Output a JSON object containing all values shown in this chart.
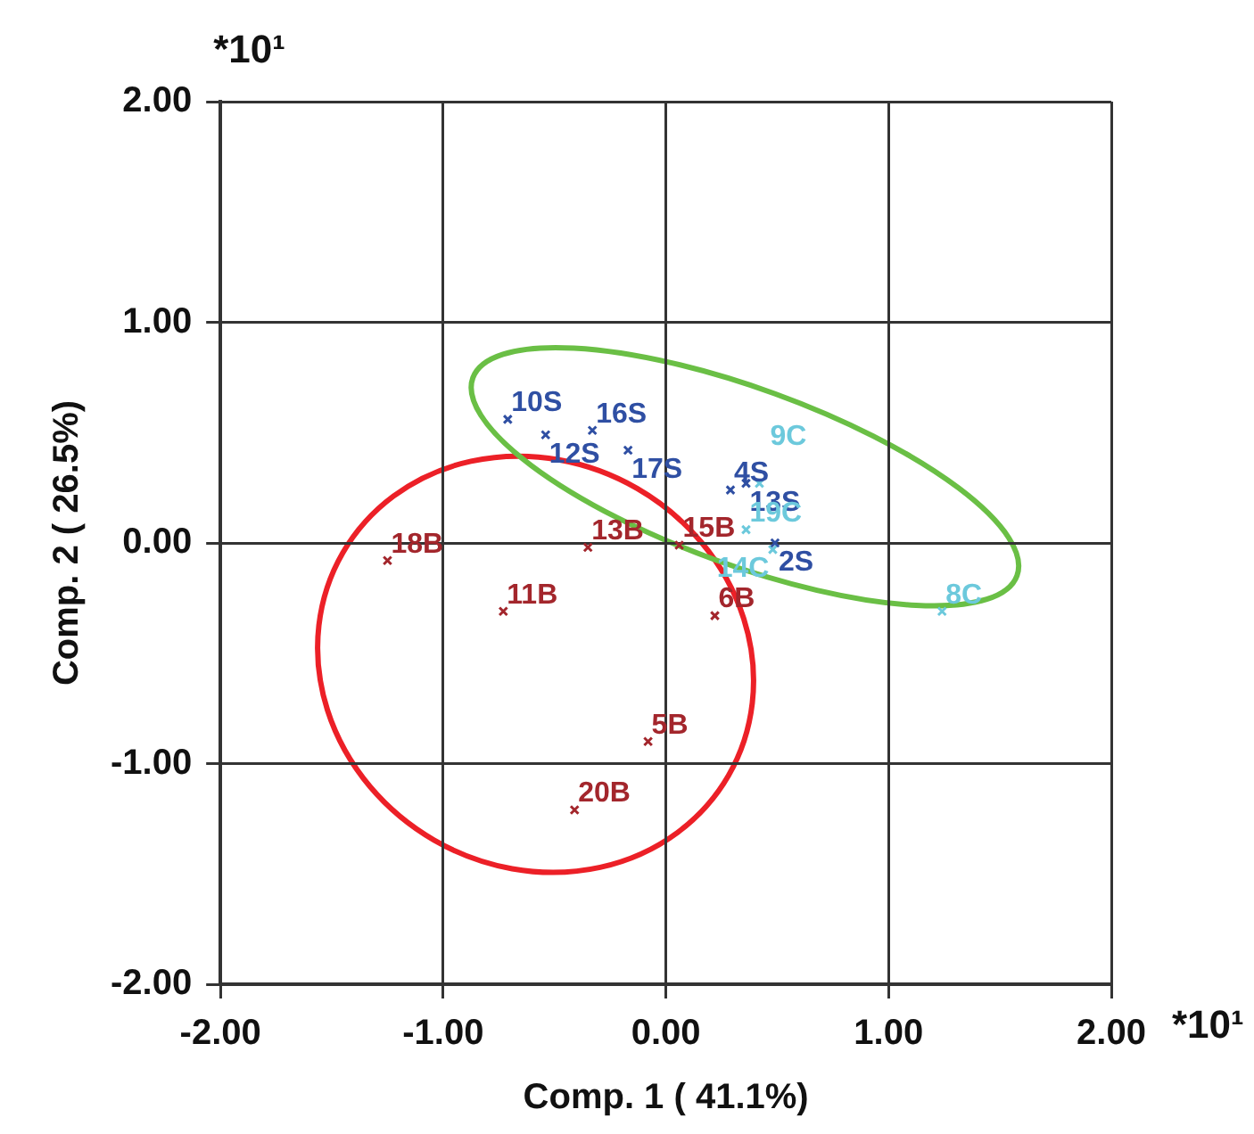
{
  "chart_data": {
    "type": "scatter",
    "xlabel": "Comp. 1 ( 41.1%)",
    "ylabel": "Comp. 2 ( 26.5%)",
    "annotations": [
      "*10¹",
      "*10¹"
    ],
    "xlim": [
      -2,
      2
    ],
    "ylim": [
      -2,
      2
    ],
    "xticks": [
      {
        "value": -2,
        "label": "-2.00"
      },
      {
        "value": -1,
        "label": "-1.00"
      },
      {
        "value": 0,
        "label": "0.00"
      },
      {
        "value": 1,
        "label": "1.00"
      },
      {
        "value": 2,
        "label": "2.00"
      }
    ],
    "yticks": [
      {
        "value": -2,
        "label": "-2.00"
      },
      {
        "value": -1,
        "label": "-1.00"
      },
      {
        "value": 0,
        "label": "0.00"
      },
      {
        "value": 1,
        "label": "1.00"
      },
      {
        "value": 2,
        "label": "2.00"
      }
    ],
    "grid": true,
    "legend": false,
    "marker": "cross",
    "series": [
      {
        "name": "18B",
        "color": "#a3262c",
        "x": [
          -1.25
        ],
        "values": [
          -0.08
        ]
      },
      {
        "name": "11B",
        "color": "#a3262c",
        "x": [
          -0.73
        ],
        "values": [
          -0.31
        ]
      },
      {
        "name": "13B",
        "color": "#a3262c",
        "x": [
          -0.35
        ],
        "values": [
          -0.02
        ]
      },
      {
        "name": "15B",
        "color": "#a3262c",
        "x": [
          0.06
        ],
        "values": [
          -0.01
        ]
      },
      {
        "name": "6B",
        "color": "#a3262c",
        "x": [
          0.22
        ],
        "values": [
          -0.33
        ]
      },
      {
        "name": "5B",
        "color": "#a3262c",
        "x": [
          -0.08
        ],
        "values": [
          -0.9
        ]
      },
      {
        "name": "20B",
        "color": "#a3262c",
        "x": [
          -0.41
        ],
        "values": [
          -1.21
        ]
      },
      {
        "name": "10S",
        "color": "#2f4fa3",
        "x": [
          -0.71
        ],
        "values": [
          0.56
        ]
      },
      {
        "name": "12S",
        "color": "#2f4fa3",
        "x": [
          -0.54
        ],
        "values": [
          0.49
        ]
      },
      {
        "name": "16S",
        "color": "#2f4fa3",
        "x": [
          -0.33
        ],
        "values": [
          0.51
        ]
      },
      {
        "name": "17S",
        "color": "#2f4fa3",
        "x": [
          -0.17
        ],
        "values": [
          0.42
        ]
      },
      {
        "name": "4S",
        "color": "#2f4fa3",
        "x": [
          0.29
        ],
        "values": [
          0.24
        ]
      },
      {
        "name": "13S",
        "color": "#2f4fa3",
        "x": [
          0.36
        ],
        "values": [
          0.27
        ]
      },
      {
        "name": "2S",
        "color": "#2f4fa3",
        "x": [
          0.49
        ],
        "values": [
          0.0
        ]
      },
      {
        "name": "9C",
        "color": "#6cc9dc",
        "x": [
          0.42
        ],
        "values": [
          0.27
        ]
      },
      {
        "name": "19C",
        "color": "#6cc9dc",
        "x": [
          0.36
        ],
        "values": [
          0.06
        ]
      },
      {
        "name": "14C",
        "color": "#6cc9dc",
        "x": [
          0.48
        ],
        "values": [
          -0.03
        ]
      },
      {
        "name": "8C",
        "color": "#6cc9dc",
        "x": [
          1.24
        ],
        "values": [
          -0.31
        ]
      }
    ]
  }
}
